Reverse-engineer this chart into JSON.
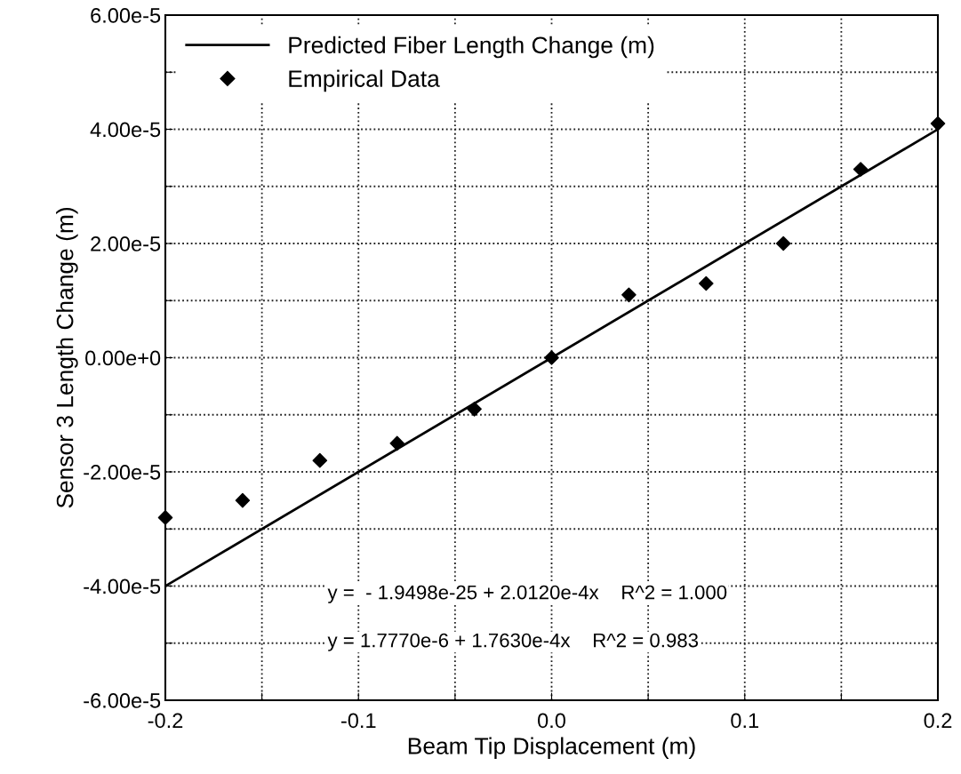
{
  "chart_data": {
    "type": "scatter",
    "xlabel": "Beam Tip Displacement (m)",
    "ylabel": "Sensor 3 Length Change (m)",
    "xlim": [
      -0.2,
      0.2
    ],
    "ylim": [
      -6e-05,
      6e-05
    ],
    "xticks": [
      {
        "value": -0.2,
        "label": "-0.2"
      },
      {
        "value": -0.15,
        "label": null
      },
      {
        "value": -0.1,
        "label": "-0.1"
      },
      {
        "value": -0.05,
        "label": null
      },
      {
        "value": 0.0,
        "label": "0.0"
      },
      {
        "value": 0.05,
        "label": null
      },
      {
        "value": 0.1,
        "label": "0.1"
      },
      {
        "value": 0.15,
        "label": null
      },
      {
        "value": 0.2,
        "label": "0.2"
      }
    ],
    "yticks": [
      {
        "value": -6e-05,
        "label": "-6.00e-5"
      },
      {
        "value": -5e-05,
        "label": null
      },
      {
        "value": -4e-05,
        "label": "-4.00e-5"
      },
      {
        "value": -3e-05,
        "label": null
      },
      {
        "value": -2e-05,
        "label": "-2.00e-5"
      },
      {
        "value": -1e-05,
        "label": null
      },
      {
        "value": 0,
        "label": "0.00e+0"
      },
      {
        "value": 1e-05,
        "label": null
      },
      {
        "value": 2e-05,
        "label": "2.00e-5"
      },
      {
        "value": 3e-05,
        "label": null
      },
      {
        "value": 4e-05,
        "label": "4.00e-5"
      },
      {
        "value": 5e-05,
        "label": null
      },
      {
        "value": 6e-05,
        "label": "6.00e-5"
      }
    ],
    "grid": true,
    "legend": "top left",
    "series": [
      {
        "name": "Predicted Fiber Length Change (m)",
        "type": "line",
        "color": "#000000",
        "line_style": "solid",
        "marker": "none",
        "x": [
          -0.2,
          0.2
        ],
        "values": [
          -4e-05,
          4e-05
        ]
      },
      {
        "name": "Empirical Data",
        "color": "#000000",
        "marker": "diamond",
        "x": [
          -0.2,
          -0.16,
          -0.12,
          -0.08,
          -0.04,
          0.0,
          0.04,
          0.08,
          0.12,
          0.16,
          0.2
        ],
        "values": [
          -2.8e-05,
          -2.5e-05,
          -1.8e-05,
          -1.5e-05,
          -9e-06,
          0.0,
          1.1e-05,
          1.3e-05,
          2e-05,
          3.3e-05,
          4.1e-05
        ]
      }
    ],
    "annotations": [
      "y =  - 1.9498e-25 + 2.0120e-4x    R^2 = 1.000",
      "y = 1.7770e-6 + 1.7630e-4x    R^2 = 0.983"
    ]
  }
}
